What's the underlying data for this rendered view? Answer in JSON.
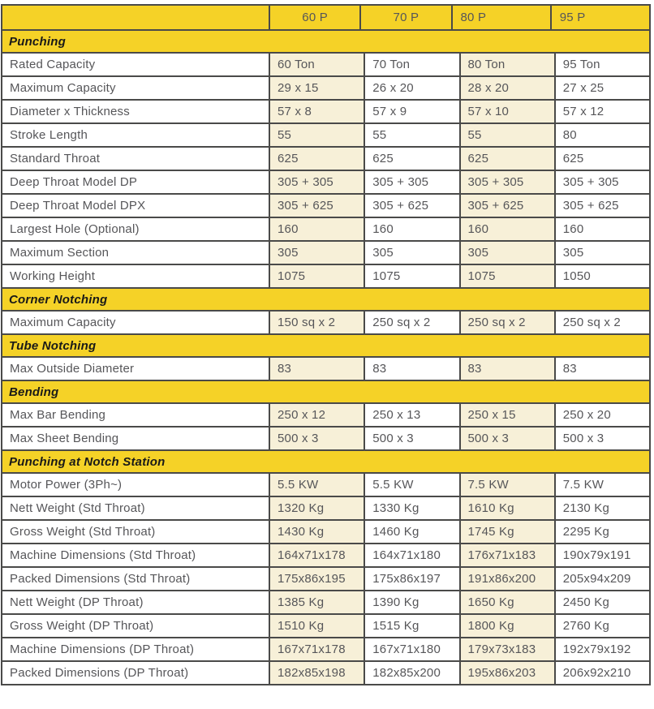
{
  "table": {
    "models": [
      "60 P",
      "70 P",
      "80 P",
      "95 P"
    ],
    "sections": [
      {
        "title": "Punching",
        "rows": [
          {
            "label": "Rated Capacity",
            "values": [
              "60 Ton",
              "70 Ton",
              "80 Ton",
              "95 Ton"
            ]
          },
          {
            "label": "Maximum Capacity",
            "values": [
              "29 x 15",
              "26 x 20",
              "28 x 20",
              "27 x 25"
            ]
          },
          {
            "label": "Diameter x Thickness",
            "values": [
              "57 x 8",
              "57 x 9",
              "57 x 10",
              "57 x 12"
            ]
          },
          {
            "label": "Stroke Length",
            "values": [
              "55",
              "55",
              "55",
              "80"
            ]
          },
          {
            "label": "Standard Throat",
            "values": [
              "625",
              "625",
              "625",
              "625"
            ]
          },
          {
            "label": "Deep Throat Model DP",
            "values": [
              "305 + 305",
              "305 + 305",
              "305 + 305",
              "305 + 305"
            ]
          },
          {
            "label": "Deep Throat Model DPX",
            "values": [
              "305 + 625",
              "305 + 625",
              "305 + 625",
              "305 + 625"
            ]
          },
          {
            "label": "Largest Hole (Optional)",
            "values": [
              "160",
              "160",
              "160",
              "160"
            ]
          },
          {
            "label": "Maximum Section",
            "values": [
              "305",
              "305",
              "305",
              "305"
            ]
          },
          {
            "label": "Working Height",
            "values": [
              "1075",
              "1075",
              "1075",
              "1050"
            ]
          }
        ]
      },
      {
        "title": "Corner Notching",
        "rows": [
          {
            "label": "Maximum Capacity",
            "values": [
              "150 sq x 2",
              "250 sq x 2",
              "250 sq x 2",
              "250 sq x 2"
            ]
          }
        ]
      },
      {
        "title": "Tube Notching",
        "rows": [
          {
            "label": "Max Outside Diameter",
            "values": [
              "83",
              "83",
              "83",
              "83"
            ]
          }
        ]
      },
      {
        "title": "Bending",
        "rows": [
          {
            "label": "Max Bar Bending",
            "values": [
              "250 x 12",
              "250 x 13",
              "250 x 15",
              "250 x 20"
            ]
          },
          {
            "label": "Max Sheet Bending",
            "values": [
              "500 x 3",
              "500 x 3",
              "500 x 3",
              "500 x 3"
            ]
          }
        ]
      },
      {
        "title": "Punching at Notch Station",
        "rows": [
          {
            "label": "Motor Power (3Ph~)",
            "values": [
              "5.5 KW",
              "5.5 KW",
              "7.5 KW",
              "7.5 KW"
            ]
          },
          {
            "label": "Nett Weight (Std Throat)",
            "values": [
              "1320 Kg",
              "1330 Kg",
              "1610 Kg",
              "2130 Kg"
            ]
          },
          {
            "label": "Gross Weight (Std Throat)",
            "values": [
              "1430 Kg",
              "1460 Kg",
              "1745 Kg",
              "2295 Kg"
            ]
          },
          {
            "label": "Machine Dimensions (Std Throat)",
            "values": [
              "164x71x178",
              "164x71x180",
              "176x71x183",
              "190x79x191"
            ]
          },
          {
            "label": "Packed Dimensions (Std Throat)",
            "values": [
              "175x86x195",
              "175x86x197",
              "191x86x200",
              "205x94x209"
            ]
          },
          {
            "label": "Nett Weight (DP Throat)",
            "values": [
              "1385 Kg",
              "1390 Kg",
              "1650 Kg",
              "2450 Kg"
            ]
          },
          {
            "label": "Gross Weight (DP Throat)",
            "values": [
              "1510 Kg",
              "1515 Kg",
              "1800 Kg",
              "2760 Kg"
            ]
          },
          {
            "label": "Machine Dimensions (DP Throat)",
            "values": [
              "167x71x178",
              "167x71x180",
              "179x73x183",
              "192x79x192"
            ]
          },
          {
            "label": "Packed Dimensions (DP Throat)",
            "values": [
              "182x85x198",
              "182x85x200",
              "195x86x203",
              "206x92x210"
            ]
          }
        ]
      }
    ],
    "colors": {
      "band_yellow": "#F5D227",
      "cell_cream": "#F7F0D8",
      "border": "#4A4A49",
      "value_text": "#565659",
      "section_text": "#1A1A18"
    }
  }
}
